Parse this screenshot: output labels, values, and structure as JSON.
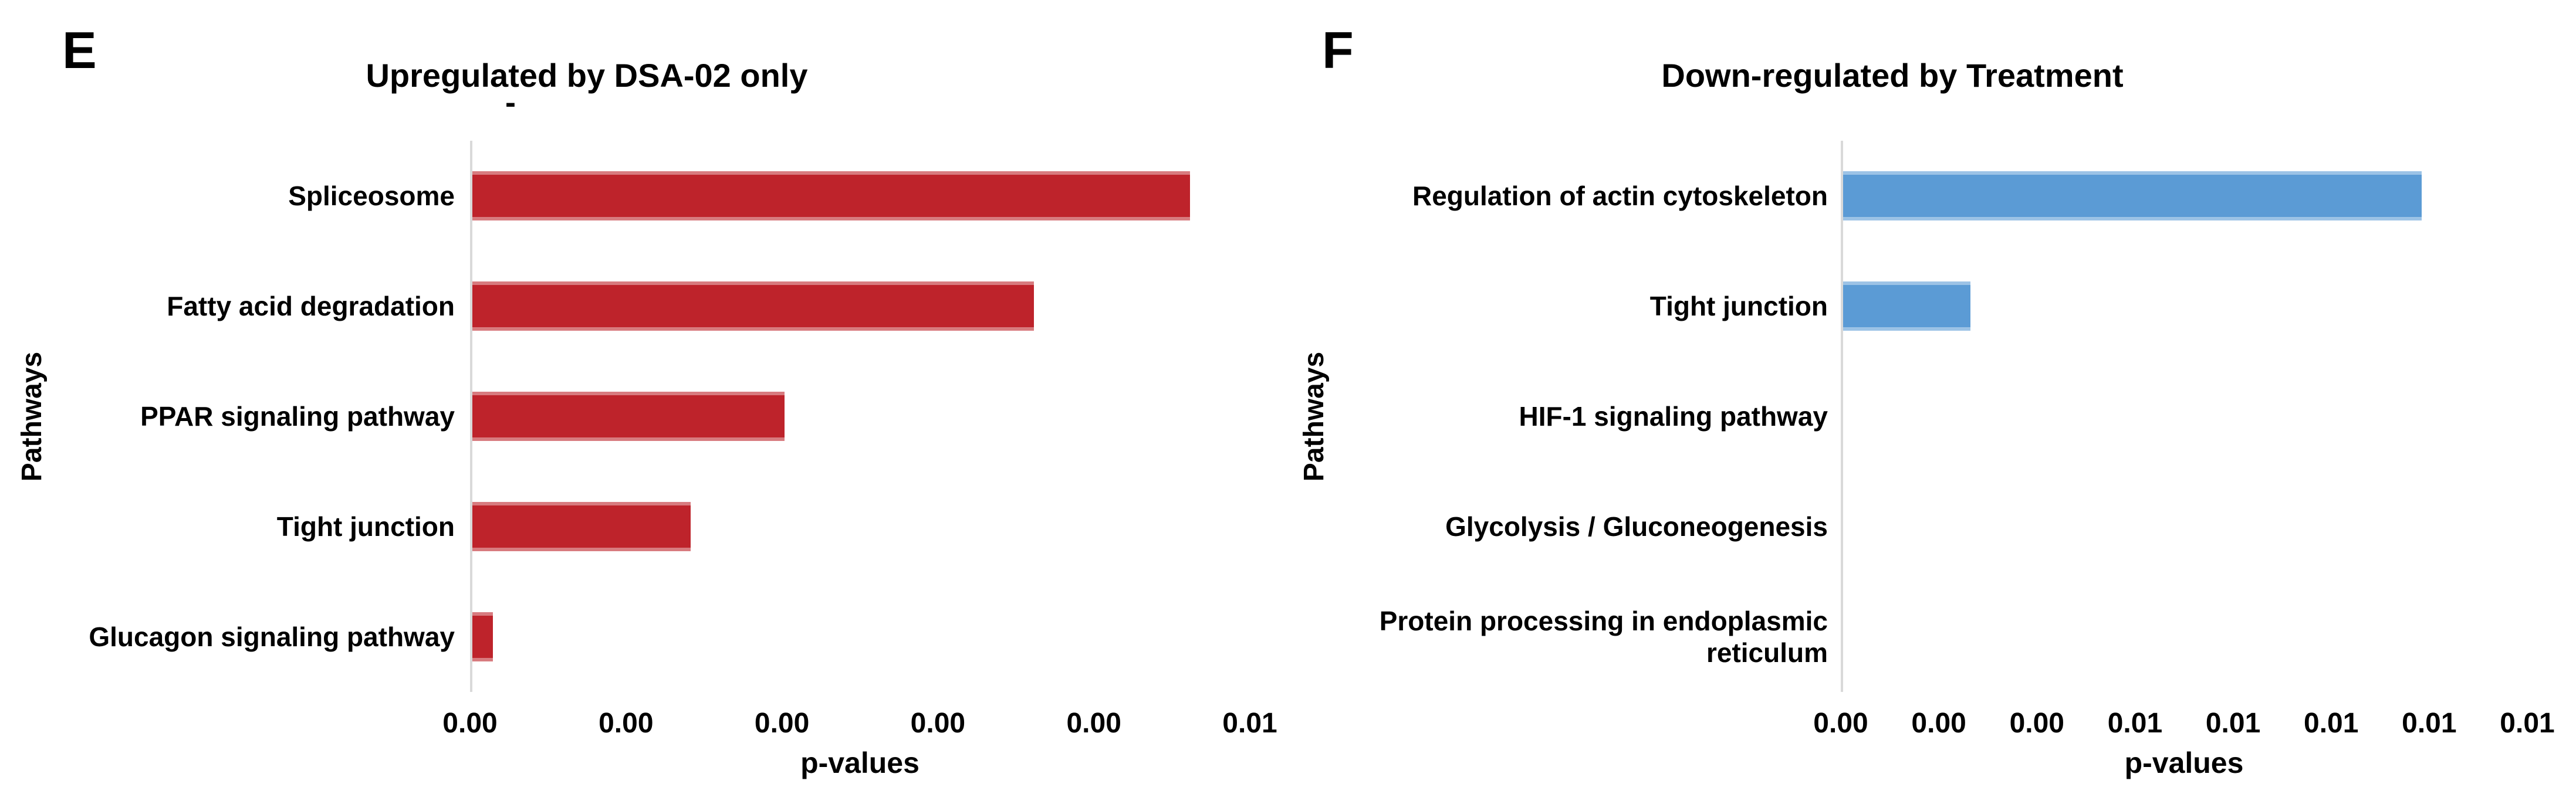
{
  "page": {
    "background": "#ffffff",
    "text_color": "#000000"
  },
  "chart_data": [
    {
      "type": "bar",
      "orientation": "horizontal",
      "panel_letter": "E",
      "title": "Upregulated by DSA-02 only",
      "subtitle": "-",
      "categories": [
        "Spliceosome",
        "Fatty acid degradation",
        "PPAR signaling pathway",
        "Tight junction",
        "Glucagon signaling pathway"
      ],
      "values": [
        0.0046,
        0.0036,
        0.002,
        0.0014,
        0.00013
      ],
      "xlabel": "p-values",
      "ylabel": "Pathways",
      "xlim": [
        0,
        0.005
      ],
      "xtick_step": 0.001,
      "xtick_labels": [
        "0.00",
        "0.00",
        "0.00",
        "0.00",
        "0.00",
        "0.01"
      ],
      "bar_color": "#BE232B",
      "axis_color": "#D9D9D9",
      "gridlines": false,
      "legend": null
    },
    {
      "type": "bar",
      "orientation": "horizontal",
      "panel_letter": "F",
      "title": "Down-regulated by Treatment",
      "subtitle": "",
      "categories": [
        "Regulation of actin cytoskeleton",
        "Tight junction",
        "HIF-1 signaling pathway",
        "Glycolysis / Gluconeogenesis",
        "Protein processing in endoplasmic reticulum"
      ],
      "values": [
        0.0118,
        0.0026,
        0,
        0,
        0
      ],
      "xlabel": "p-values",
      "ylabel": "Pathways",
      "xlim": [
        0,
        0.014
      ],
      "xtick_step": 0.002,
      "xtick_labels": [
        "0.00",
        "0.00",
        "0.00",
        "0.01",
        "0.01",
        "0.01",
        "0.01",
        "0.01"
      ],
      "bar_color": "#5B9BD5",
      "axis_color": "#D9D9D9",
      "gridlines": false,
      "legend": null
    }
  ]
}
